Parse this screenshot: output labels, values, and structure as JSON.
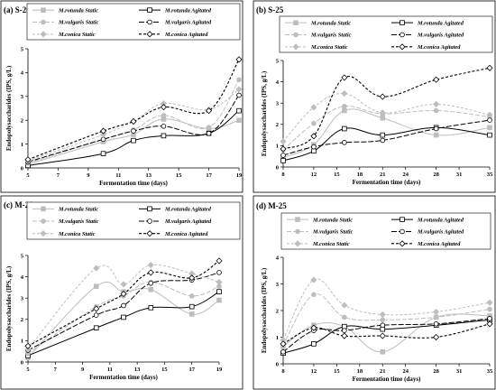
{
  "figure": {
    "background": "#ffffff"
  },
  "chart_data": [
    {
      "panel": "(a) S-20",
      "type": "line",
      "x": [
        5,
        10,
        12,
        14,
        17,
        19
      ],
      "xticks": [
        5,
        7,
        9,
        11,
        13,
        15,
        17,
        19
      ],
      "xlim": [
        5,
        19
      ],
      "yticks": [
        0,
        1,
        2,
        3,
        4,
        5
      ],
      "ylim": [
        0,
        5
      ],
      "xlabel": "Fermentation time (days)",
      "ylabel": "Endopolysaccharides (IPS, g/L)",
      "legend_placement": "top",
      "series": [
        {
          "name": "M.rotunda Static",
          "values": [
            0.15,
            1.1,
            1.4,
            2.05,
            1.65,
            2.0
          ]
        },
        {
          "name": "M.rotunda Agitated",
          "values": [
            0.1,
            0.6,
            1.15,
            1.35,
            1.45,
            2.4
          ]
        },
        {
          "name": "M.vulgaris Static",
          "values": [
            0.2,
            1.2,
            1.6,
            2.2,
            1.7,
            3.7
          ]
        },
        {
          "name": "M.vulgaris Agitated",
          "values": [
            0.25,
            1.2,
            1.55,
            1.75,
            1.45,
            3.05
          ]
        },
        {
          "name": "M.conica Static",
          "values": [
            0.3,
            1.4,
            1.95,
            2.7,
            2.45,
            3.3
          ]
        },
        {
          "name": "M.conica Agitated",
          "values": [
            0.35,
            1.55,
            1.95,
            2.55,
            2.4,
            4.55
          ]
        }
      ]
    },
    {
      "panel": "(b) S-25",
      "type": "line",
      "x": [
        8,
        12,
        16,
        21,
        28,
        35
      ],
      "xticks": [
        8,
        12,
        15,
        18,
        21,
        24,
        28,
        31,
        35
      ],
      "xlim": [
        8,
        35
      ],
      "yticks": [
        0,
        1,
        2,
        3,
        4,
        5
      ],
      "ylim": [
        0,
        5
      ],
      "xlabel": "Fermentation time (days)",
      "ylabel": "Endopolysaccharides (IPS, g/L)",
      "legend_placement": "top",
      "series": [
        {
          "name": "M.rotunda Static",
          "values": [
            0.45,
            1.05,
            2.65,
            2.3,
            1.5,
            1.85
          ]
        },
        {
          "name": "M.rotunda Agitated",
          "values": [
            0.3,
            0.75,
            1.8,
            1.5,
            1.85,
            1.5
          ]
        },
        {
          "name": "M.vulgaris Static",
          "values": [
            0.8,
            2.05,
            2.85,
            2.5,
            2.65,
            2.35
          ]
        },
        {
          "name": "M.vulgaris Agitated",
          "values": [
            0.55,
            0.95,
            1.15,
            1.25,
            1.8,
            2.2
          ]
        },
        {
          "name": "M.conica Static",
          "values": [
            1.2,
            2.8,
            3.45,
            2.55,
            2.95,
            2.45
          ]
        },
        {
          "name": "M.conica Agitated",
          "values": [
            0.85,
            1.45,
            4.2,
            3.3,
            4.1,
            4.65
          ]
        }
      ]
    },
    {
      "panel": "(c) M-20",
      "type": "line",
      "x": [
        5,
        10,
        12,
        14,
        17,
        19
      ],
      "xticks": [
        5,
        7,
        9,
        11,
        13,
        15,
        17,
        19
      ],
      "xlim": [
        5,
        19
      ],
      "yticks": [
        0,
        1,
        2,
        3,
        4,
        5
      ],
      "ylim": [
        0,
        5
      ],
      "xlabel": "Fermentation time (days)",
      "ylabel": "Endopolysaccharides (IPS, g/L)",
      "legend_placement": "top",
      "series": [
        {
          "name": "M.rotunda Static",
          "values": [
            0.2,
            3.55,
            3.3,
            3.4,
            2.25,
            2.9
          ]
        },
        {
          "name": "M.rotunda Agitated",
          "values": [
            0.3,
            1.6,
            2.1,
            2.55,
            2.6,
            3.3
          ]
        },
        {
          "name": "M.vulgaris Static",
          "values": [
            0.4,
            2.6,
            3.1,
            3.75,
            3.1,
            3.55
          ]
        },
        {
          "name": "M.vulgaris Agitated",
          "values": [
            0.55,
            2.2,
            2.65,
            3.7,
            3.85,
            4.2
          ]
        },
        {
          "name": "M.conica Static",
          "values": [
            0.6,
            4.4,
            3.65,
            4.55,
            4.15,
            3.75
          ]
        },
        {
          "name": "M.conica Agitated",
          "values": [
            0.75,
            2.5,
            3.2,
            4.2,
            3.95,
            4.75
          ]
        }
      ]
    },
    {
      "panel": "(d) M-25",
      "type": "line",
      "x": [
        8,
        12,
        16,
        21,
        28,
        35
      ],
      "xticks": [
        8,
        12,
        15,
        18,
        21,
        24,
        28,
        31,
        35
      ],
      "xlim": [
        8,
        35
      ],
      "yticks": [
        0,
        1,
        2,
        3,
        4
      ],
      "ylim": [
        0,
        4
      ],
      "xlabel": "Fermentation time (days)",
      "ylabel": "Endopolysaccharides (IPS, g/L)",
      "legend_placement": "top",
      "series": [
        {
          "name": "M.rotunda Static",
          "values": [
            0.65,
            1.45,
            1.4,
            0.45,
            1.75,
            1.8
          ]
        },
        {
          "name": "M.rotunda Agitated",
          "values": [
            0.4,
            0.75,
            1.4,
            1.3,
            1.45,
            1.65
          ]
        },
        {
          "name": "M.vulgaris Static",
          "values": [
            0.7,
            2.6,
            1.75,
            1.65,
            1.75,
            2.05
          ]
        },
        {
          "name": "M.vulgaris Agitated",
          "values": [
            0.45,
            1.25,
            1.25,
            1.45,
            1.5,
            1.7
          ]
        },
        {
          "name": "M.conica Static",
          "values": [
            0.9,
            3.15,
            2.2,
            1.85,
            1.95,
            2.3
          ]
        },
        {
          "name": "M.conica Agitated",
          "values": [
            0.75,
            1.35,
            1.05,
            1.05,
            1.0,
            1.5
          ]
        }
      ]
    }
  ]
}
